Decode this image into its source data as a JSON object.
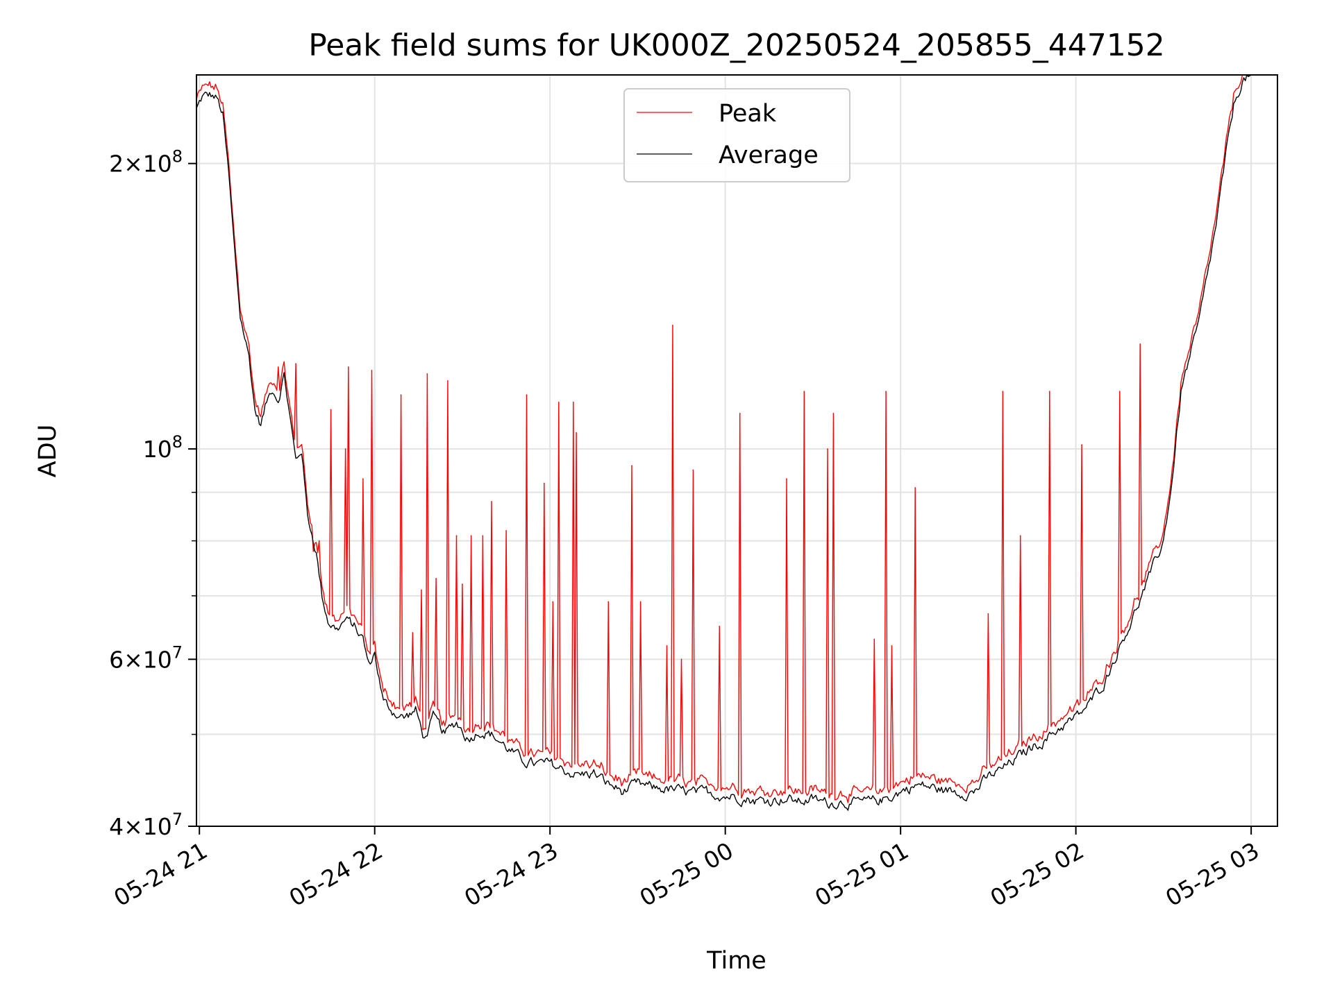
{
  "chart_data": {
    "type": "line",
    "title": "Peak field sums for UK000Z_20250524_205855_447152",
    "xlabel": "Time",
    "ylabel": "ADU",
    "y_scale": "log",
    "grid": true,
    "legend_position": "top-center",
    "xlim": [
      "2025-05-24 20:59",
      "2025-05-25 03:09"
    ],
    "ylim": [
      40000000,
      248000000
    ],
    "x_ticks": [
      {
        "value": "2025-05-24 21:00",
        "label": "05-24 21"
      },
      {
        "value": "2025-05-24 22:00",
        "label": "05-24 22"
      },
      {
        "value": "2025-05-24 23:00",
        "label": "05-24 23"
      },
      {
        "value": "2025-05-25 00:00",
        "label": "05-25 00"
      },
      {
        "value": "2025-05-25 01:00",
        "label": "05-25 01"
      },
      {
        "value": "2025-05-25 02:00",
        "label": "05-25 02"
      },
      {
        "value": "2025-05-25 03:00",
        "label": "05-25 03"
      }
    ],
    "y_ticks": [
      {
        "value": 40000000,
        "base": "4",
        "exp": "7"
      },
      {
        "value": 60000000,
        "base": "6",
        "exp": "7"
      },
      {
        "value": 100000000,
        "base": "",
        "exp": "8"
      },
      {
        "value": 200000000,
        "base": "2",
        "exp": "8"
      }
    ],
    "y_minor_ticks": [
      50000000,
      70000000,
      80000000,
      90000000
    ],
    "series": [
      {
        "name": "Average",
        "color": "#000000",
        "points": [
          [
            "2025-05-24 20:59",
            228000000
          ],
          [
            "2025-05-24 21:01",
            235000000
          ],
          [
            "2025-05-24 21:04",
            236000000
          ],
          [
            "2025-05-24 21:06",
            234000000
          ],
          [
            "2025-05-24 21:08",
            225000000
          ],
          [
            "2025-05-24 21:10",
            195000000
          ],
          [
            "2025-05-24 21:12",
            162000000
          ],
          [
            "2025-05-24 21:14",
            138000000
          ],
          [
            "2025-05-24 21:17",
            125000000
          ],
          [
            "2025-05-24 21:19",
            110000000
          ],
          [
            "2025-05-24 21:21",
            106000000
          ],
          [
            "2025-05-24 21:23",
            112000000
          ],
          [
            "2025-05-24 21:25",
            116000000
          ],
          [
            "2025-05-24 21:27",
            113000000
          ],
          [
            "2025-05-24 21:29",
            120000000
          ],
          [
            "2025-05-24 21:31",
            108000000
          ],
          [
            "2025-05-24 21:33",
            97000000
          ],
          [
            "2025-05-24 21:35",
            100000000
          ],
          [
            "2025-05-24 21:37",
            85000000
          ],
          [
            "2025-05-24 21:40",
            78000000
          ],
          [
            "2025-05-24 21:42",
            70000000
          ],
          [
            "2025-05-24 21:44",
            66000000
          ],
          [
            "2025-05-24 21:47",
            64500000
          ],
          [
            "2025-05-24 21:50",
            66000000
          ],
          [
            "2025-05-24 21:53",
            65000000
          ],
          [
            "2025-05-24 21:56",
            63000000
          ],
          [
            "2025-05-24 21:58",
            59000000
          ],
          [
            "2025-05-24 22:00",
            61000000
          ],
          [
            "2025-05-24 22:03",
            54000000
          ],
          [
            "2025-05-24 22:06",
            53000000
          ],
          [
            "2025-05-24 22:10",
            52000000
          ],
          [
            "2025-05-24 22:14",
            53000000
          ],
          [
            "2025-05-24 22:17",
            49500000
          ],
          [
            "2025-05-24 22:20",
            52000000
          ],
          [
            "2025-05-24 22:24",
            50000000
          ],
          [
            "2025-05-24 22:28",
            51500000
          ],
          [
            "2025-05-24 22:32",
            49500000
          ],
          [
            "2025-05-24 22:36",
            50500000
          ],
          [
            "2025-05-24 22:40",
            50000000
          ],
          [
            "2025-05-24 22:45",
            48500000
          ],
          [
            "2025-05-24 22:50",
            47000000
          ],
          [
            "2025-05-24 22:55",
            46500000
          ],
          [
            "2025-05-24 23:00",
            46500000
          ],
          [
            "2025-05-24 23:05",
            45800000
          ],
          [
            "2025-05-24 23:10",
            45300000
          ],
          [
            "2025-05-24 23:15",
            45500000
          ],
          [
            "2025-05-24 23:20",
            44300000
          ],
          [
            "2025-05-24 23:25",
            43500000
          ],
          [
            "2025-05-24 23:30",
            44200000
          ],
          [
            "2025-05-24 23:35",
            43900000
          ],
          [
            "2025-05-24 23:40",
            43800000
          ],
          [
            "2025-05-24 23:45",
            43500000
          ],
          [
            "2025-05-24 23:50",
            43300000
          ],
          [
            "2025-05-24 23:55",
            43400000
          ],
          [
            "2025-05-25 00:00",
            43100000
          ],
          [
            "2025-05-25 00:05",
            43000000
          ],
          [
            "2025-05-25 00:10",
            42600000
          ],
          [
            "2025-05-25 00:15",
            42600000
          ],
          [
            "2025-05-25 00:20",
            42800000
          ],
          [
            "2025-05-25 00:25",
            42500000
          ],
          [
            "2025-05-25 00:30",
            42700000
          ],
          [
            "2025-05-25 00:35",
            42300000
          ],
          [
            "2025-05-25 00:40",
            42500000
          ],
          [
            "2025-05-25 00:45",
            42300000
          ],
          [
            "2025-05-25 00:50",
            42400000
          ],
          [
            "2025-05-25 00:55",
            42800000
          ],
          [
            "2025-05-25 01:00",
            43500000
          ],
          [
            "2025-05-25 01:05",
            44200000
          ],
          [
            "2025-05-25 01:10",
            44000000
          ],
          [
            "2025-05-25 01:15",
            43600000
          ],
          [
            "2025-05-25 01:20",
            43500000
          ],
          [
            "2025-05-25 01:25",
            43500000
          ],
          [
            "2025-05-25 01:30",
            45000000
          ],
          [
            "2025-05-25 01:35",
            46000000
          ],
          [
            "2025-05-25 01:40",
            47200000
          ],
          [
            "2025-05-25 01:45",
            48500000
          ],
          [
            "2025-05-25 01:50",
            49500000
          ],
          [
            "2025-05-25 01:55",
            51000000
          ],
          [
            "2025-05-25 02:00",
            52000000
          ],
          [
            "2025-05-25 02:05",
            54000000
          ],
          [
            "2025-05-25 02:10",
            57000000
          ],
          [
            "2025-05-25 02:15",
            62000000
          ],
          [
            "2025-05-25 02:20",
            67000000
          ],
          [
            "2025-05-25 02:25",
            73000000
          ],
          [
            "2025-05-25 02:30",
            80000000
          ],
          [
            "2025-05-25 02:33",
            93000000
          ],
          [
            "2025-05-25 02:36",
            115000000
          ],
          [
            "2025-05-25 02:39",
            125000000
          ],
          [
            "2025-05-25 02:42",
            135000000
          ],
          [
            "2025-05-25 02:45",
            152000000
          ],
          [
            "2025-05-25 02:48",
            172000000
          ],
          [
            "2025-05-25 02:51",
            200000000
          ],
          [
            "2025-05-25 02:54",
            230000000
          ],
          [
            "2025-05-25 02:57",
            245000000
          ],
          [
            "2025-05-25 03:00",
            248000000
          ],
          [
            "2025-05-25 03:09",
            248000000
          ]
        ]
      },
      {
        "name": "Peak",
        "color": "#ff0000",
        "baseline_offset": 1.018,
        "spikes": [
          [
            "2025-05-24 21:27",
            122000000
          ],
          [
            "2025-05-24 21:33",
            123000000
          ],
          [
            "2025-05-24 21:39",
            78000000
          ],
          [
            "2025-05-24 21:41",
            80000000
          ],
          [
            "2025-05-24 21:45",
            110000000
          ],
          [
            "2025-05-24 21:50",
            100000000
          ],
          [
            "2025-05-24 21:51",
            122000000
          ],
          [
            "2025-05-24 21:56",
            93000000
          ],
          [
            "2025-05-24 21:59",
            121000000
          ],
          [
            "2025-05-24 22:09",
            91000000
          ],
          [
            "2025-05-24 22:09",
            114000000
          ],
          [
            "2025-05-24 22:13",
            64000000
          ],
          [
            "2025-05-24 22:16",
            71000000
          ],
          [
            "2025-05-24 22:18",
            120000000
          ],
          [
            "2025-05-24 22:21",
            73000000
          ],
          [
            "2025-05-24 22:25",
            118000000
          ],
          [
            "2025-05-24 22:28",
            81000000
          ],
          [
            "2025-05-24 22:30",
            72000000
          ],
          [
            "2025-05-24 22:33",
            81000000
          ],
          [
            "2025-05-24 22:37",
            81000000
          ],
          [
            "2025-05-24 22:40",
            88000000
          ],
          [
            "2025-05-24 22:45",
            82000000
          ],
          [
            "2025-05-24 22:52",
            114000000
          ],
          [
            "2025-05-24 22:58",
            92000000
          ],
          [
            "2025-05-24 23:01",
            69000000
          ],
          [
            "2025-05-24 23:03",
            112000000
          ],
          [
            "2025-05-24 23:08",
            112000000
          ],
          [
            "2025-05-24 23:09",
            104000000
          ],
          [
            "2025-05-24 23:20",
            69000000
          ],
          [
            "2025-05-24 23:28",
            96000000
          ],
          [
            "2025-05-24 23:31",
            69000000
          ],
          [
            "2025-05-24 23:40",
            62000000
          ],
          [
            "2025-05-24 23:42",
            135000000
          ],
          [
            "2025-05-24 23:45",
            60000000
          ],
          [
            "2025-05-24 23:49",
            95000000
          ],
          [
            "2025-05-24 23:58",
            65000000
          ],
          [
            "2025-05-25 00:05",
            109000000
          ],
          [
            "2025-05-25 00:21",
            93000000
          ],
          [
            "2025-05-25 00:27",
            115000000
          ],
          [
            "2025-05-25 00:35",
            100000000
          ],
          [
            "2025-05-25 00:37",
            109000000
          ],
          [
            "2025-05-25 00:51",
            63000000
          ],
          [
            "2025-05-25 00:55",
            115000000
          ],
          [
            "2025-05-25 00:57",
            62000000
          ],
          [
            "2025-05-25 01:05",
            91000000
          ],
          [
            "2025-05-25 01:30",
            67000000
          ],
          [
            "2025-05-25 01:35",
            115000000
          ],
          [
            "2025-05-25 01:41",
            81000000
          ],
          [
            "2025-05-25 01:51",
            115000000
          ],
          [
            "2025-05-25 02:02",
            101000000
          ],
          [
            "2025-05-25 02:15",
            115000000
          ],
          [
            "2025-05-25 02:22",
            129000000
          ]
        ]
      }
    ]
  }
}
